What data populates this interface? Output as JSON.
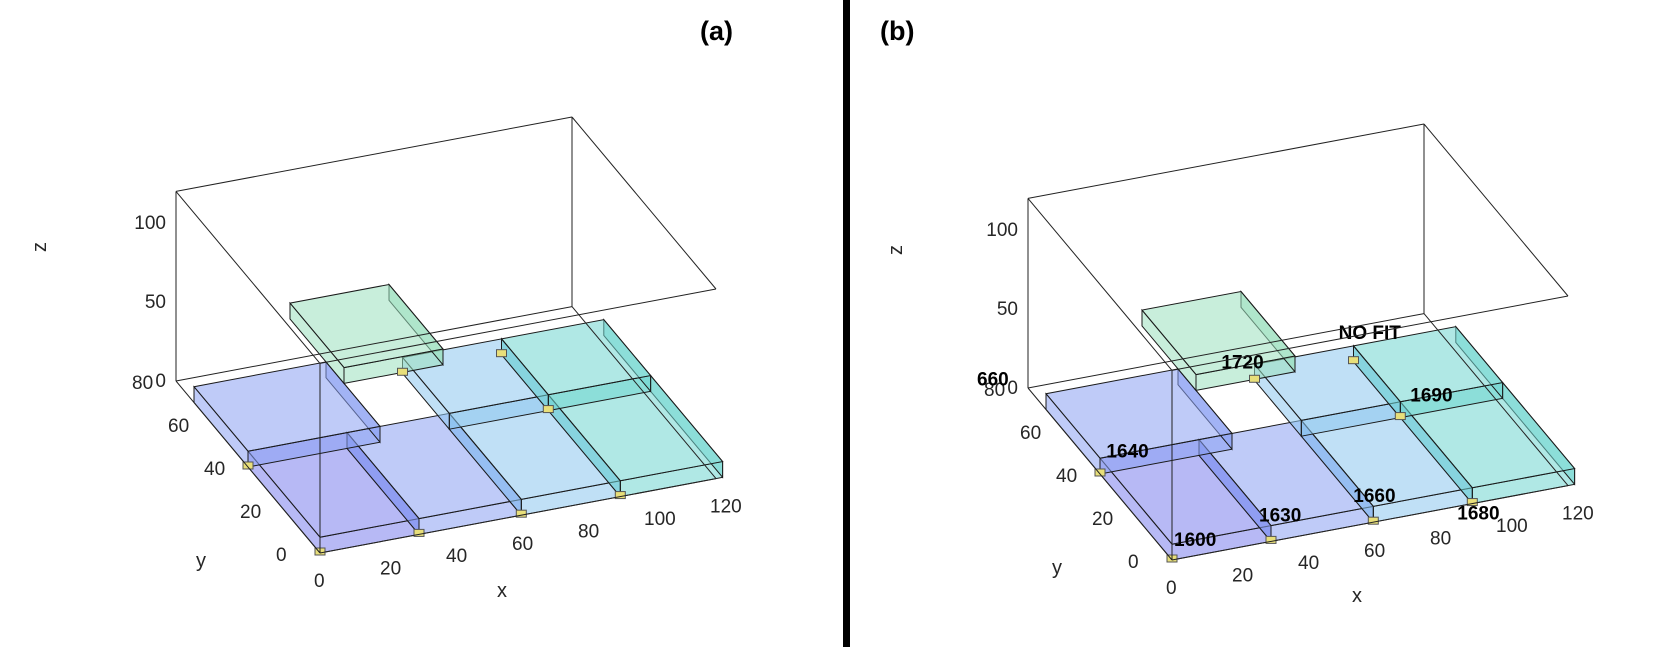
{
  "colors": {
    "box_blue_dark": "#7b7fec",
    "box_blue": "#8aa0f3",
    "box_lightblue": "#8cc6ee",
    "box_cyan": "#6fd6d0",
    "box_green": "#9be0bd",
    "edge": "#1a1a1a",
    "marker": "#e8df7a",
    "divider": "#000000"
  },
  "panels": [
    {
      "label": "(a)",
      "axes": {
        "x": {
          "label": "x",
          "ticks": [
            "0",
            "20",
            "40",
            "60",
            "80",
            "100",
            "120"
          ]
        },
        "y": {
          "label": "y",
          "ticks": [
            "0",
            "20",
            "40",
            "60",
            "80"
          ]
        },
        "z": {
          "label": "z",
          "ticks": [
            "0",
            "50",
            "100"
          ]
        }
      },
      "annotations": []
    },
    {
      "label": "(b)",
      "axes": {
        "x": {
          "label": "x",
          "ticks": [
            "0",
            "20",
            "40",
            "60",
            "80",
            "100",
            "120"
          ]
        },
        "y": {
          "label": "y",
          "ticks": [
            "0",
            "20",
            "40",
            "60",
            "80"
          ]
        },
        "z": {
          "label": "z",
          "ticks": [
            "0",
            "50",
            "100"
          ]
        }
      },
      "annotations": [
        "660",
        "1640",
        "1600",
        "1630",
        "1660",
        "1680",
        "1690",
        "1720",
        "NO FIT"
      ]
    }
  ]
}
